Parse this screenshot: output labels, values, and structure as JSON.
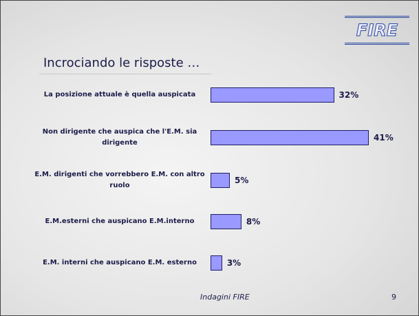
{
  "logo": "FIRE",
  "chart_data": {
    "type": "bar",
    "orientation": "horizontal",
    "title": "Incrociando le risposte …",
    "categories": [
      "La posizione attuale è quella auspicata",
      "Non dirigente che auspica che l'E.M. sia dirigente",
      "E.M. dirigenti che vorrebbero E.M. con altro ruolo",
      "E.M.esterni che auspicano E.M.interno",
      "E.M. interni che auspicano E.M. esterno"
    ],
    "values": [
      32,
      41,
      5,
      8,
      3
    ],
    "value_labels": [
      "32%",
      "41%",
      "5%",
      "8%",
      "3%"
    ],
    "color": "#9999ff"
  },
  "footer": {
    "text": "Indagini FIRE",
    "page": "9"
  }
}
